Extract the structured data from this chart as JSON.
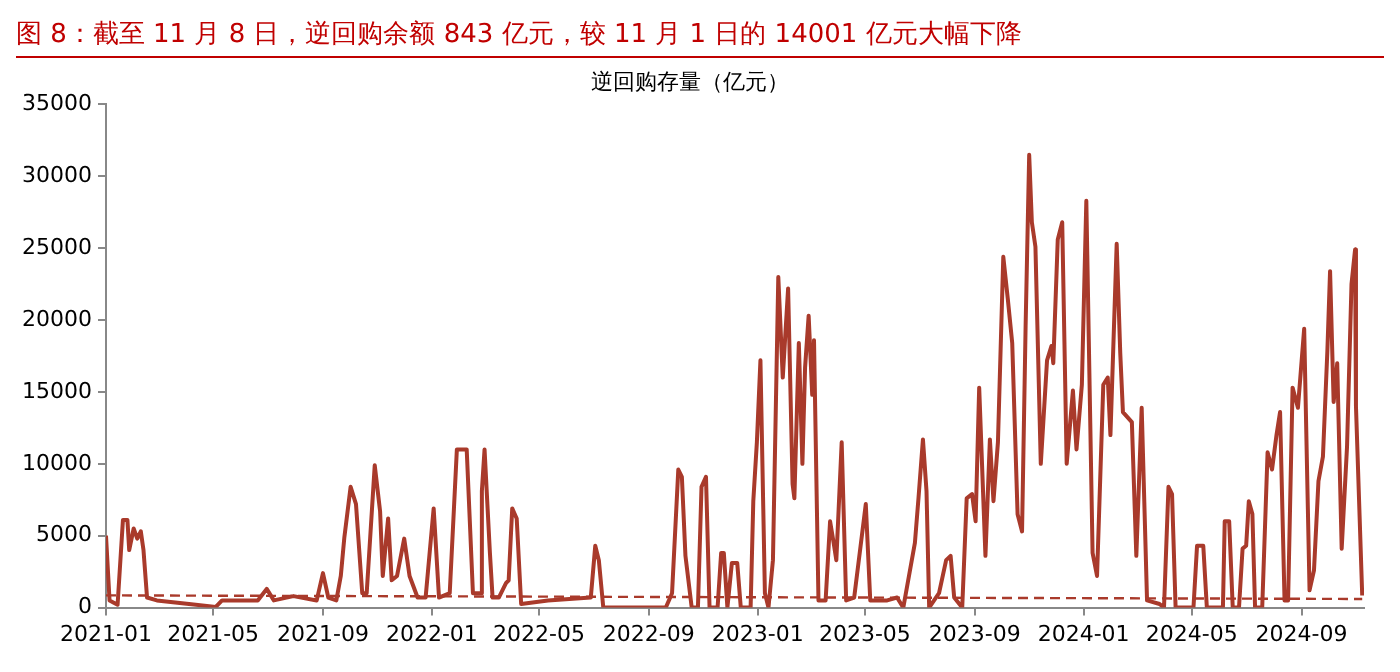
{
  "chart_data": {
    "type": "line",
    "title": "图 8：截至 11 月 8 日，逆回购余额 843 亿元，较 11 月 1 日的 14001 亿元大幅下降",
    "subtitle": "逆回购存量（亿元）",
    "xlim": [
      "2021-01-01",
      "2024-11-10"
    ],
    "xticks": [
      "2021-01",
      "2021-05",
      "2021-09",
      "2022-01",
      "2022-05",
      "2022-09",
      "2023-01",
      "2023-05",
      "2023-09",
      "2024-01",
      "2024-05",
      "2024-09"
    ],
    "ylim": [
      0,
      35000
    ],
    "yticks": [
      0,
      5000,
      10000,
      15000,
      20000,
      25000,
      30000,
      35000
    ],
    "grid": false,
    "legend": false,
    "marker": "none",
    "series": [
      {
        "color": "#a93a2b",
        "line_style": "solid",
        "x": [
          "2021-01-01",
          "2021-01-05",
          "2021-01-14",
          "2021-01-20",
          "2021-01-25",
          "2021-01-27",
          "2021-02-01",
          "2021-02-05",
          "2021-02-09",
          "2021-02-12",
          "2021-02-16",
          "2021-02-27",
          "2021-04-04",
          "2021-05-04",
          "2021-05-11",
          "2021-06-20",
          "2021-06-30",
          "2021-07-08",
          "2021-07-30",
          "2021-08-25",
          "2021-09-01",
          "2021-09-07",
          "2021-09-16",
          "2021-09-21",
          "2021-09-25",
          "2021-10-02",
          "2021-10-08",
          "2021-10-15",
          "2021-10-20",
          "2021-10-29",
          "2021-11-04",
          "2021-11-07",
          "2021-11-13",
          "2021-11-17",
          "2021-11-23",
          "2021-12-01",
          "2021-12-07",
          "2021-12-16",
          "2021-12-25",
          "2022-01-03",
          "2022-01-09",
          "2022-01-21",
          "2022-01-29",
          "2022-02-09",
          "2022-02-16",
          "2022-02-25",
          "2022-02-26",
          "2022-03-01",
          "2022-03-07",
          "2022-03-10",
          "2022-03-17",
          "2022-03-25",
          "2022-03-28",
          "2022-04-01",
          "2022-04-06",
          "2022-04-11",
          "2022-05-11",
          "2022-06-28",
          "2022-07-03",
          "2022-07-07",
          "2022-07-12",
          "2022-09-20",
          "2022-09-27",
          "2022-10-04",
          "2022-10-08",
          "2022-10-12",
          "2022-10-19",
          "2022-10-26",
          "2022-10-30",
          "2022-11-04",
          "2022-11-08",
          "2022-11-17",
          "2022-11-21",
          "2022-11-24",
          "2022-11-28",
          "2022-12-03",
          "2022-12-09",
          "2022-12-13",
          "2022-12-24",
          "2022-12-27",
          "2022-12-31",
          "2023-01-04",
          "2023-01-09",
          "2023-01-13",
          "2023-01-18",
          "2023-01-24",
          "2023-01-29",
          "2023-02-04",
          "2023-02-09",
          "2023-02-11",
          "2023-02-16",
          "2023-02-20",
          "2023-02-23",
          "2023-02-27",
          "2023-03-03",
          "2023-03-05",
          "2023-03-10",
          "2023-03-18",
          "2023-03-23",
          "2023-03-27",
          "2023-03-30",
          "2023-04-05",
          "2023-04-10",
          "2023-04-19",
          "2023-05-02",
          "2023-05-07",
          "2023-05-26",
          "2023-06-06",
          "2023-06-13",
          "2023-06-26",
          "2023-06-30",
          "2023-07-05",
          "2023-07-09",
          "2023-07-12",
          "2023-07-23",
          "2023-07-31",
          "2023-08-05",
          "2023-08-09",
          "2023-08-18",
          "2023-08-23",
          "2023-08-29",
          "2023-09-02",
          "2023-09-06",
          "2023-09-13",
          "2023-09-18",
          "2023-09-22",
          "2023-09-27",
          "2023-10-03",
          "2023-10-08",
          "2023-10-13",
          "2023-10-19",
          "2023-10-24",
          "2023-10-28",
          "2023-11-01",
          "2023-11-04",
          "2023-11-08",
          "2023-11-14",
          "2023-11-21",
          "2023-11-26",
          "2023-11-28",
          "2023-12-03",
          "2023-12-08",
          "2023-12-13",
          "2023-12-20",
          "2023-12-24",
          "2023-12-30",
          "2024-01-04",
          "2024-01-11",
          "2024-01-16",
          "2024-01-23",
          "2024-01-28",
          "2024-01-31",
          "2024-02-07",
          "2024-02-11",
          "2024-02-14",
          "2024-02-24",
          "2024-02-29",
          "2024-03-06",
          "2024-03-12",
          "2024-03-26",
          "2024-03-31",
          "2024-04-05",
          "2024-04-09",
          "2024-04-13",
          "2024-05-03",
          "2024-05-07",
          "2024-05-14",
          "2024-05-18",
          "2024-06-05",
          "2024-06-07",
          "2024-06-12",
          "2024-06-16",
          "2024-06-23",
          "2024-06-27",
          "2024-07-01",
          "2024-07-04",
          "2024-07-08",
          "2024-07-11",
          "2024-07-19",
          "2024-07-25",
          "2024-07-30",
          "2024-08-04",
          "2024-08-08",
          "2024-08-13",
          "2024-08-17",
          "2024-08-22",
          "2024-08-28",
          "2024-09-04",
          "2024-09-10",
          "2024-09-15",
          "2024-09-20",
          "2024-09-25",
          "2024-09-30",
          "2024-10-03",
          "2024-10-07",
          "2024-10-11",
          "2024-10-16",
          "2024-10-22",
          "2024-10-27",
          "2024-10-31",
          "2024-11-01",
          "2024-11-08"
        ],
        "values": [
          5000,
          500,
          200,
          6100,
          6100,
          4000,
          5500,
          4800,
          5300,
          4000,
          700,
          500,
          250,
          50,
          500,
          500,
          1300,
          500,
          800,
          500,
          2400,
          700,
          500,
          2200,
          4900,
          8400,
          7200,
          1000,
          1000,
          9900,
          6700,
          2200,
          6200,
          1900,
          2200,
          4800,
          2200,
          700,
          700,
          6900,
          700,
          1000,
          11000,
          11000,
          1000,
          1000,
          8100,
          11000,
          3800,
          700,
          700,
          1700,
          1900,
          6900,
          6200,
          250,
          500,
          700,
          4300,
          3300,
          0,
          0,
          1000,
          9600,
          9100,
          3600,
          0,
          0,
          8400,
          9100,
          0,
          0,
          3800,
          3800,
          0,
          3100,
          3100,
          0,
          0,
          7400,
          11500,
          17200,
          1000,
          0,
          3300,
          23000,
          16000,
          22200,
          8600,
          7600,
          18400,
          10000,
          16700,
          20300,
          14800,
          18600,
          500,
          500,
          6000,
          4500,
          3300,
          11500,
          500,
          700,
          7200,
          500,
          500,
          700,
          0,
          4500,
          7600,
          11700,
          8100,
          0,
          1000,
          3300,
          3600,
          700,
          0,
          7600,
          7900,
          6000,
          15300,
          3600,
          11700,
          7400,
          11500,
          24400,
          21500,
          18400,
          6500,
          5300,
          19600,
          31500,
          26800,
          25100,
          10000,
          17200,
          18200,
          17000,
          25600,
          26800,
          10000,
          15100,
          11000,
          15500,
          28300,
          3800,
          2200,
          15500,
          16000,
          12000,
          25300,
          17700,
          13600,
          12900,
          3600,
          13900,
          500,
          250,
          0,
          8400,
          7900,
          0,
          0,
          4300,
          4300,
          0,
          0,
          6000,
          6000,
          0,
          0,
          4100,
          4300,
          7400,
          6500,
          0,
          0,
          10800,
          9600,
          12000,
          13600,
          500,
          500,
          15300,
          13900,
          19400,
          1200,
          2600,
          8800,
          10500,
          17900,
          23400,
          14300,
          17000,
          4100,
          11200,
          22500,
          24900,
          14001,
          843
        ]
      },
      {
        "color": "#a93a2b",
        "line_style": "dashed",
        "x": [
          "2021-01-01",
          "2024-11-08"
        ],
        "values": [
          850,
          600
        ]
      }
    ]
  }
}
